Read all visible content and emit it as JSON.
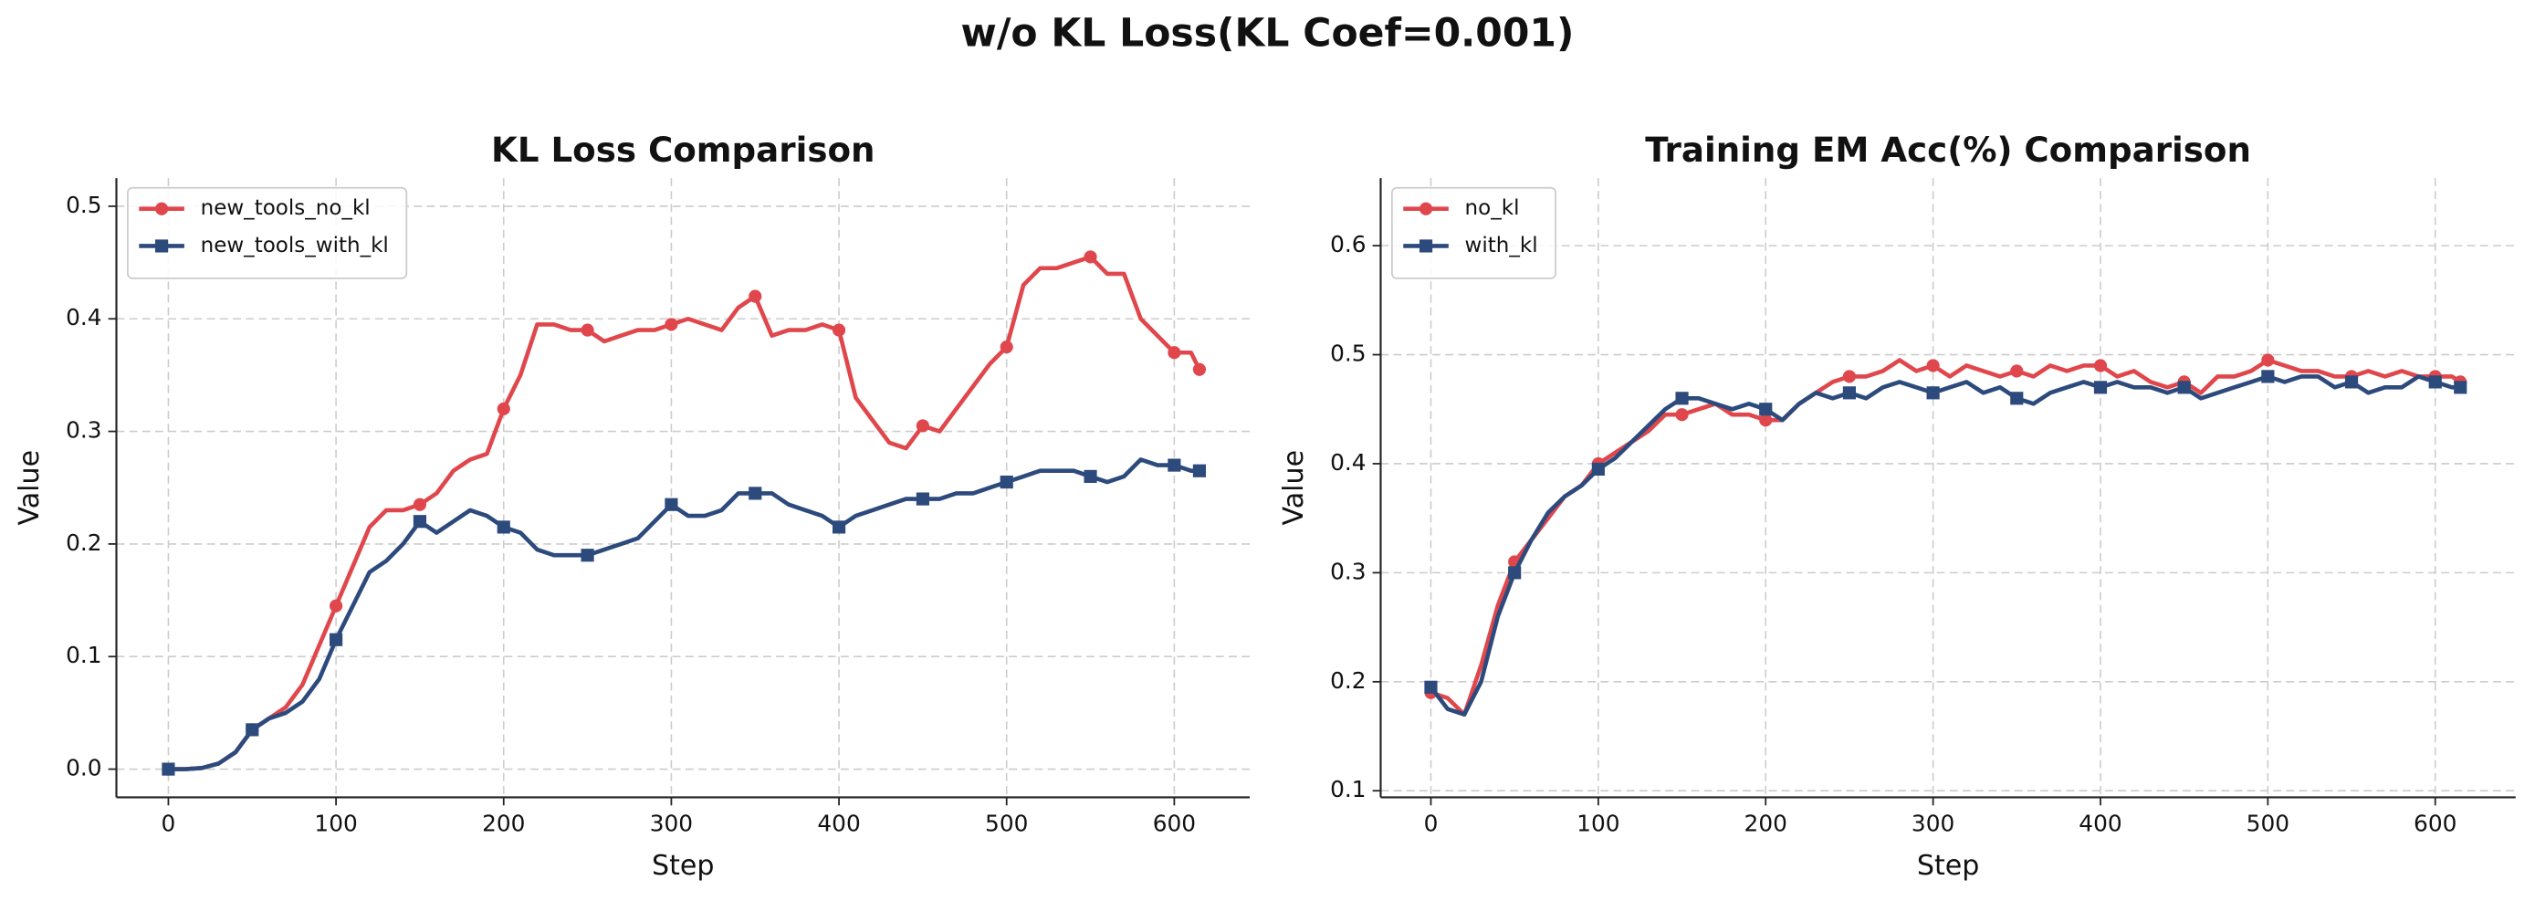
{
  "suptitle": "w/o KL Loss(KL Coef=0.001)",
  "chart_data": [
    {
      "type": "line",
      "title": "KL Loss Comparison",
      "xlabel": "Step",
      "ylabel": "Value",
      "x": [
        0,
        10,
        20,
        30,
        40,
        50,
        60,
        70,
        80,
        90,
        100,
        110,
        120,
        130,
        140,
        150,
        160,
        170,
        180,
        190,
        200,
        210,
        220,
        230,
        240,
        250,
        260,
        270,
        280,
        290,
        300,
        310,
        320,
        330,
        340,
        350,
        360,
        370,
        380,
        390,
        400,
        410,
        420,
        430,
        440,
        450,
        460,
        470,
        480,
        490,
        500,
        510,
        520,
        530,
        540,
        550,
        560,
        570,
        580,
        590,
        600,
        610,
        615
      ],
      "series": [
        {
          "name": "new_tools_no_kl",
          "color": "#e0474c",
          "marker": "circle",
          "values": [
            0,
            0,
            0.001,
            0.005,
            0.015,
            0.035,
            0.045,
            0.055,
            0.075,
            0.11,
            0.145,
            0.18,
            0.215,
            0.23,
            0.23,
            0.235,
            0.245,
            0.265,
            0.275,
            0.28,
            0.32,
            0.35,
            0.395,
            0.395,
            0.39,
            0.39,
            0.38,
            0.385,
            0.39,
            0.39,
            0.395,
            0.4,
            0.395,
            0.39,
            0.41,
            0.42,
            0.385,
            0.39,
            0.39,
            0.395,
            0.39,
            0.33,
            0.31,
            0.29,
            0.285,
            0.305,
            0.3,
            0.32,
            0.34,
            0.36,
            0.375,
            0.43,
            0.445,
            0.445,
            0.45,
            0.455,
            0.44,
            0.44,
            0.4,
            0.385,
            0.37,
            0.37,
            0.355
          ]
        },
        {
          "name": "new_tools_with_kl",
          "color": "#2c4a7c",
          "marker": "square",
          "values": [
            0,
            0,
            0.001,
            0.005,
            0.015,
            0.035,
            0.045,
            0.05,
            0.06,
            0.08,
            0.115,
            0.145,
            0.175,
            0.185,
            0.2,
            0.22,
            0.21,
            0.22,
            0.23,
            0.225,
            0.215,
            0.21,
            0.195,
            0.19,
            0.19,
            0.19,
            0.195,
            0.2,
            0.205,
            0.22,
            0.235,
            0.225,
            0.225,
            0.23,
            0.245,
            0.245,
            0.245,
            0.235,
            0.23,
            0.225,
            0.215,
            0.225,
            0.23,
            0.235,
            0.24,
            0.24,
            0.24,
            0.245,
            0.245,
            0.25,
            0.255,
            0.26,
            0.265,
            0.265,
            0.265,
            0.26,
            0.255,
            0.26,
            0.275,
            0.27,
            0.27,
            0.265,
            0.265
          ]
        }
      ],
      "xlim": [
        -31,
        645
      ],
      "xticks": [
        0,
        100,
        200,
        300,
        400,
        500,
        600
      ],
      "ylim": [
        -0.025,
        0.525
      ],
      "yticks": [
        {
          "value": 0,
          "label": "0.0"
        },
        0.1,
        0.2,
        0.3,
        0.4,
        0.5
      ],
      "grid": true,
      "legend": "upper left"
    },
    {
      "type": "line",
      "title": "Training EM Acc(%) Comparison",
      "xlabel": "Step",
      "ylabel": "Value",
      "x": [
        0,
        10,
        20,
        30,
        40,
        50,
        60,
        70,
        80,
        90,
        100,
        110,
        120,
        130,
        140,
        150,
        160,
        170,
        180,
        190,
        200,
        210,
        220,
        230,
        240,
        250,
        260,
        270,
        280,
        290,
        300,
        310,
        320,
        330,
        340,
        350,
        360,
        370,
        380,
        390,
        400,
        410,
        420,
        430,
        440,
        450,
        460,
        470,
        480,
        490,
        500,
        510,
        520,
        530,
        540,
        550,
        560,
        570,
        580,
        590,
        600,
        610,
        615
      ],
      "series": [
        {
          "name": "no_kl",
          "color": "#e0474c",
          "marker": "circle",
          "values": [
            0.19,
            0.185,
            0.17,
            0.215,
            0.27,
            0.31,
            0.33,
            0.35,
            0.37,
            0.38,
            0.4,
            0.41,
            0.42,
            0.43,
            0.445,
            0.445,
            0.45,
            0.455,
            0.445,
            0.445,
            0.44,
            0.44,
            0.455,
            0.465,
            0.475,
            0.48,
            0.48,
            0.485,
            0.495,
            0.485,
            0.49,
            0.48,
            0.49,
            0.485,
            0.48,
            0.485,
            0.48,
            0.49,
            0.485,
            0.49,
            0.49,
            0.48,
            0.485,
            0.475,
            0.47,
            0.475,
            0.465,
            0.48,
            0.48,
            0.485,
            0.495,
            0.49,
            0.485,
            0.485,
            0.48,
            0.48,
            0.485,
            0.48,
            0.485,
            0.48,
            0.48,
            0.48,
            0.475
          ]
        },
        {
          "name": "with_kl",
          "color": "#2c4a7c",
          "marker": "square",
          "values": [
            0.195,
            0.175,
            0.17,
            0.2,
            0.26,
            0.3,
            0.33,
            0.355,
            0.37,
            0.38,
            0.395,
            0.405,
            0.42,
            0.435,
            0.45,
            0.46,
            0.46,
            0.455,
            0.45,
            0.455,
            0.45,
            0.44,
            0.455,
            0.465,
            0.46,
            0.465,
            0.46,
            0.47,
            0.475,
            0.47,
            0.465,
            0.47,
            0.475,
            0.465,
            0.47,
            0.46,
            0.455,
            0.465,
            0.47,
            0.475,
            0.47,
            0.475,
            0.47,
            0.47,
            0.465,
            0.47,
            0.46,
            0.465,
            0.47,
            0.475,
            0.48,
            0.475,
            0.48,
            0.48,
            0.47,
            0.475,
            0.465,
            0.47,
            0.47,
            0.48,
            0.475,
            0.47,
            0.47
          ]
        }
      ],
      "xlim": [
        -30,
        648
      ],
      "xticks": [
        0,
        100,
        200,
        300,
        400,
        500,
        600
      ],
      "ylim": [
        0.094,
        0.662
      ],
      "yticks": [
        0.1,
        0.2,
        0.3,
        0.4,
        0.5,
        0.6
      ],
      "grid": true,
      "legend": "upper left"
    }
  ]
}
